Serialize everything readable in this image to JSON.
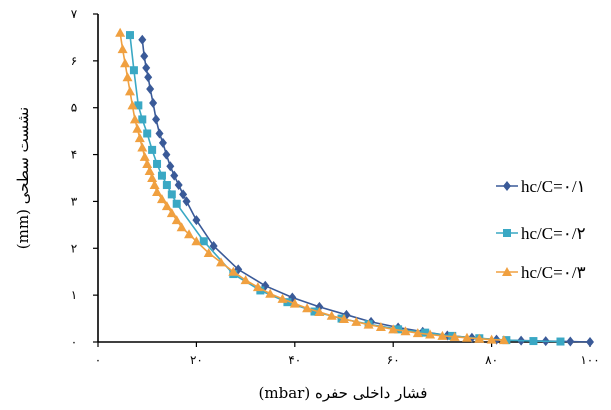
{
  "chart_data": {
    "type": "line",
    "xlabel": "فشار داخلی حفره (mbar)",
    "ylabel": "نشست سطحی (mm)",
    "xlim": [
      0,
      100
    ],
    "ylim": [
      0,
      7
    ],
    "x_ticks": [
      0,
      20,
      40,
      60,
      80,
      100
    ],
    "y_ticks": [
      0,
      1,
      2,
      3,
      4,
      5,
      6,
      7
    ],
    "x_tick_labels": [
      "۰",
      "۲۰",
      "۴۰",
      "۶۰",
      "۸۰",
      "۱۰۰"
    ],
    "y_tick_labels": [
      "۰",
      "۱",
      "۲",
      "۳",
      "۴",
      "۵",
      "۶",
      "۷"
    ],
    "grid": false,
    "legend_position": "right",
    "series": [
      {
        "name": "hc/C=۰/۱",
        "color": "#3a5a98",
        "marker": "diamond",
        "points": [
          [
            9.0,
            6.45
          ],
          [
            9.4,
            6.1
          ],
          [
            9.8,
            5.85
          ],
          [
            10.2,
            5.65
          ],
          [
            10.6,
            5.4
          ],
          [
            11.2,
            5.1
          ],
          [
            11.8,
            4.75
          ],
          [
            12.5,
            4.45
          ],
          [
            13.2,
            4.25
          ],
          [
            13.9,
            4.0
          ],
          [
            14.7,
            3.75
          ],
          [
            15.5,
            3.55
          ],
          [
            16.4,
            3.35
          ],
          [
            17.3,
            3.15
          ],
          [
            18.0,
            3.0
          ],
          [
            20.0,
            2.6
          ],
          [
            23.5,
            2.05
          ],
          [
            28.5,
            1.55
          ],
          [
            34.0,
            1.2
          ],
          [
            39.5,
            0.95
          ],
          [
            45.0,
            0.75
          ],
          [
            50.5,
            0.58
          ],
          [
            55.5,
            0.43
          ],
          [
            61.0,
            0.31
          ],
          [
            66.0,
            0.22
          ],
          [
            71.0,
            0.14
          ],
          [
            76.0,
            0.09
          ],
          [
            81.0,
            0.05
          ],
          [
            86.0,
            0.03
          ],
          [
            91.0,
            0.02
          ],
          [
            96.0,
            0.01
          ],
          [
            100.0,
            0.0
          ]
        ]
      },
      {
        "name": "hc/C=۰/۲",
        "color": "#3aa8c4",
        "marker": "square",
        "points": [
          [
            6.5,
            6.55
          ],
          [
            7.3,
            5.8
          ],
          [
            8.2,
            5.05
          ],
          [
            9.0,
            4.75
          ],
          [
            10.0,
            4.45
          ],
          [
            11.0,
            4.1
          ],
          [
            12.0,
            3.8
          ],
          [
            13.0,
            3.55
          ],
          [
            14.0,
            3.35
          ],
          [
            15.0,
            3.15
          ],
          [
            16.0,
            2.95
          ],
          [
            21.5,
            2.15
          ],
          [
            27.5,
            1.45
          ],
          [
            33.0,
            1.1
          ],
          [
            38.5,
            0.85
          ],
          [
            44.0,
            0.65
          ],
          [
            49.5,
            0.5
          ],
          [
            55.0,
            0.38
          ],
          [
            61.0,
            0.27
          ],
          [
            66.5,
            0.2
          ],
          [
            72.0,
            0.13
          ],
          [
            77.5,
            0.08
          ],
          [
            83.0,
            0.04
          ],
          [
            88.5,
            0.02
          ],
          [
            94.0,
            0.01
          ]
        ]
      },
      {
        "name": "hc/C=۰/۳",
        "color": "#f0a040",
        "marker": "triangle",
        "points": [
          [
            4.5,
            6.6
          ],
          [
            5.0,
            6.25
          ],
          [
            5.5,
            5.95
          ],
          [
            6.0,
            5.65
          ],
          [
            6.5,
            5.35
          ],
          [
            7.0,
            5.05
          ],
          [
            7.5,
            4.75
          ],
          [
            8.0,
            4.55
          ],
          [
            8.5,
            4.35
          ],
          [
            9.0,
            4.15
          ],
          [
            9.5,
            3.95
          ],
          [
            10.0,
            3.8
          ],
          [
            10.5,
            3.65
          ],
          [
            11.0,
            3.5
          ],
          [
            11.5,
            3.35
          ],
          [
            12.0,
            3.2
          ],
          [
            13.0,
            3.05
          ],
          [
            14.0,
            2.9
          ],
          [
            15.0,
            2.75
          ],
          [
            16.0,
            2.6
          ],
          [
            17.0,
            2.45
          ],
          [
            18.5,
            2.3
          ],
          [
            20.0,
            2.15
          ],
          [
            22.5,
            1.9
          ],
          [
            25.0,
            1.7
          ],
          [
            27.5,
            1.5
          ],
          [
            30.0,
            1.32
          ],
          [
            32.5,
            1.17
          ],
          [
            35.0,
            1.03
          ],
          [
            37.5,
            0.92
          ],
          [
            40.0,
            0.82
          ],
          [
            42.5,
            0.72
          ],
          [
            45.0,
            0.64
          ],
          [
            47.5,
            0.56
          ],
          [
            50.0,
            0.49
          ],
          [
            52.5,
            0.43
          ],
          [
            55.0,
            0.37
          ],
          [
            57.5,
            0.32
          ],
          [
            60.0,
            0.27
          ],
          [
            62.5,
            0.23
          ],
          [
            65.0,
            0.19
          ],
          [
            67.5,
            0.16
          ],
          [
            70.0,
            0.13
          ],
          [
            72.5,
            0.11
          ],
          [
            75.0,
            0.09
          ],
          [
            77.5,
            0.07
          ],
          [
            80.0,
            0.05
          ],
          [
            82.5,
            0.04
          ]
        ]
      }
    ]
  }
}
